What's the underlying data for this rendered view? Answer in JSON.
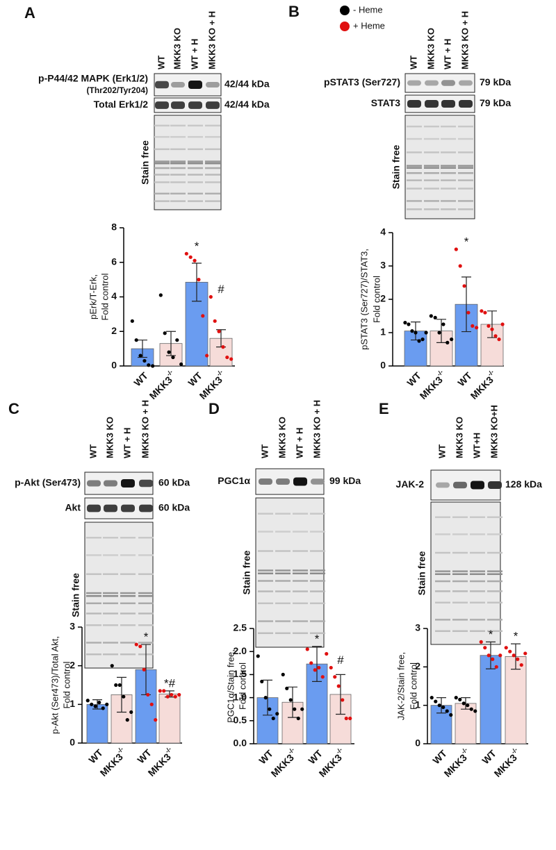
{
  "legend": [
    {
      "label": "- Heme",
      "color": "#000000"
    },
    {
      "label": "+ Heme",
      "color": "#e01010"
    }
  ],
  "blots": [
    {
      "panel": "A",
      "lanes": [
        "WT",
        "MKK3 KO",
        "WT + H",
        "MKK3 KO + H"
      ],
      "rows": [
        {
          "label": "p-P44/42 MAPK (Erk1/2)",
          "sublabel": "(Thr202/Tyr204)",
          "kda": "42/44 kDa"
        },
        {
          "label": "Total Erk1/2",
          "kda": "42/44 kDa"
        }
      ],
      "stain": "Stain free"
    },
    {
      "panel": "B",
      "lanes": [
        "WT",
        "MKK3 KO",
        "WT + H",
        "MKK3 KO + H"
      ],
      "rows": [
        {
          "label": "pSTAT3 (Ser727)",
          "kda": "79 kDa"
        },
        {
          "label": "STAT3",
          "kda": "79 kDa"
        }
      ],
      "stain": "Stain free"
    },
    {
      "panel": "C",
      "lanes": [
        "WT",
        "MKK3 KO",
        "WT + H",
        "MKK3 KO + H"
      ],
      "rows": [
        {
          "label": "p-Akt (Ser473)",
          "kda": "60 kDa"
        },
        {
          "label": "Akt",
          "kda": "60 kDa"
        }
      ],
      "stain": "Stain free"
    },
    {
      "panel": "D",
      "lanes": [
        "WT",
        "MKK3 KO",
        "WT + H",
        "MKK3 KO + H"
      ],
      "rows": [
        {
          "label": "PGC1α",
          "kda": "99 kDa"
        }
      ],
      "stain": "Stain free"
    },
    {
      "panel": "E",
      "lanes": [
        "WT",
        "MKK3 KO",
        "WT+H",
        "MKK3 KO+H"
      ],
      "rows": [
        {
          "label": "JAK-2",
          "kda": "128 kDa"
        }
      ],
      "stain": "Stain free"
    }
  ],
  "chart_data": [
    {
      "type": "bar",
      "ylabel": [
        "pErk/T-Erk,",
        "Fold control"
      ],
      "categories": [
        "WT",
        "MKK3",
        "WT",
        "MKK3"
      ],
      "superscripts": [
        null,
        "-/-",
        null,
        "-/-"
      ],
      "values": [
        1.0,
        1.3,
        4.85,
        1.6
      ],
      "errors": [
        0.5,
        0.7,
        1.1,
        0.5
      ],
      "colors": [
        "#6a9cf0",
        "#f6dcd9",
        "#6a9cf0",
        "#f6dcd9"
      ],
      "point_colors": [
        "#000000",
        "#000000",
        "#e01010",
        "#e01010"
      ],
      "points": [
        [
          2.6,
          1.5,
          0.6,
          0.3,
          0.05,
          0.0
        ],
        [
          4.1,
          1.9,
          0.8,
          0.5,
          1.5,
          0.1
        ],
        [
          6.5,
          6.3,
          6.1,
          5.0,
          2.9,
          0.6
        ],
        [
          4.0,
          2.6,
          2.0,
          1.1,
          0.5,
          0.4
        ]
      ],
      "annotations": [
        null,
        null,
        "*",
        "#"
      ],
      "ylim": [
        0,
        8
      ],
      "yticks": [
        0,
        2,
        4,
        6,
        8
      ]
    },
    {
      "type": "bar",
      "ylabel": [
        "pSTAT3 (Ser727)/STAT3,",
        "Fold control"
      ],
      "categories": [
        "WT",
        "MKK3",
        "WT",
        "MKK3"
      ],
      "superscripts": [
        null,
        "-/-",
        null,
        "-/-"
      ],
      "values": [
        1.05,
        1.05,
        1.85,
        1.25
      ],
      "errors": [
        0.27,
        0.35,
        0.82,
        0.4
      ],
      "colors": [
        "#6a9cf0",
        "#f6dcd9",
        "#6a9cf0",
        "#f6dcd9"
      ],
      "point_colors": [
        "#000000",
        "#000000",
        "#e01010",
        "#e01010"
      ],
      "points": [
        [
          1.3,
          1.25,
          1.05,
          1.0,
          0.75,
          0.8,
          1.0
        ],
        [
          1.5,
          1.45,
          1.0,
          1.25,
          0.7,
          0.8
        ],
        [
          3.5,
          3.0,
          2.4,
          1.6,
          1.2,
          1.15
        ],
        [
          1.65,
          1.6,
          1.2,
          1.1,
          0.9,
          0.8,
          1.25
        ]
      ],
      "annotations": [
        null,
        null,
        "*",
        null
      ],
      "ylim": [
        0,
        4
      ],
      "yticks": [
        0,
        1,
        2,
        3,
        4
      ]
    },
    {
      "type": "bar",
      "ylabel": [
        "p-Akt (Ser473)/Total Akt,",
        "Fold control"
      ],
      "categories": [
        "WT",
        "MKK3",
        "WT",
        "MKK3"
      ],
      "superscripts": [
        null,
        "-/-",
        null,
        "-/-"
      ],
      "values": [
        1.0,
        1.25,
        1.9,
        1.27
      ],
      "errors": [
        0.12,
        0.45,
        0.65,
        0.08
      ],
      "colors": [
        "#6a9cf0",
        "#f6dcd9",
        "#6a9cf0",
        "#f6dcd9"
      ],
      "point_colors": [
        "#000000",
        "#000000",
        "#e01010",
        "#e01010"
      ],
      "points": [
        [
          1.1,
          1.0,
          0.95,
          1.05,
          0.9,
          1.0
        ],
        [
          2.0,
          1.5,
          1.5,
          1.2,
          0.6,
          0.8
        ],
        [
          2.55,
          2.5,
          1.9,
          1.25,
          1.0,
          0.6
        ],
        [
          1.35,
          1.35,
          1.2,
          1.25,
          1.2,
          1.25
        ]
      ],
      "annotations": [
        null,
        null,
        "*",
        "*#"
      ],
      "ylim": [
        0,
        3
      ],
      "yticks": [
        0,
        1,
        2,
        3
      ]
    },
    {
      "type": "bar",
      "ylabel": [
        "PGC1α/Stain free,",
        "Fold control"
      ],
      "categories": [
        "WT",
        "MKK3",
        "WT",
        "MKK3"
      ],
      "superscripts": [
        null,
        "-/-",
        null,
        "-/-"
      ],
      "values": [
        1.0,
        0.9,
        1.73,
        1.07
      ],
      "errors": [
        0.38,
        0.33,
        0.38,
        0.43
      ],
      "colors": [
        "#6a9cf0",
        "#f6dcd9",
        "#6a9cf0",
        "#f6dcd9"
      ],
      "point_colors": [
        "#000000",
        "#000000",
        "#e01010",
        "#e01010"
      ],
      "points": [
        [
          1.9,
          1.35,
          1.0,
          0.75,
          0.55,
          0.65
        ],
        [
          1.5,
          1.2,
          0.95,
          0.75,
          0.55,
          0.75
        ],
        [
          2.05,
          1.75,
          1.6,
          1.65,
          1.45,
          1.95
        ],
        [
          1.65,
          1.45,
          1.25,
          0.95,
          0.55,
          0.55
        ]
      ],
      "annotations": [
        null,
        null,
        "*",
        "#"
      ],
      "ylim": [
        0,
        2.5
      ],
      "yticks": [
        {
          "value": 0,
          "label": "0.0"
        },
        0.5,
        {
          "value": 1,
          "label": "1.0"
        },
        1.5,
        {
          "value": 2,
          "label": "2.0"
        },
        2.5
      ]
    },
    {
      "type": "bar",
      "ylabel": [
        "JAK-2/Stain free,",
        "Fold control"
      ],
      "categories": [
        "WT",
        "MKK3",
        "WT",
        "MKK3"
      ],
      "superscripts": [
        null,
        "-/-",
        null,
        "-/-"
      ],
      "values": [
        1.0,
        1.05,
        2.3,
        2.27
      ],
      "errors": [
        0.2,
        0.15,
        0.35,
        0.33
      ],
      "colors": [
        "#6a9cf0",
        "#f6dcd9",
        "#6a9cf0",
        "#f6dcd9"
      ],
      "point_colors": [
        "#000000",
        "#000000",
        "#e01010",
        "#e01010"
      ],
      "points": [
        [
          1.2,
          1.1,
          1.0,
          0.95,
          0.85,
          0.75
        ],
        [
          1.2,
          1.15,
          1.05,
          1.0,
          0.9,
          0.85
        ],
        [
          2.65,
          2.5,
          2.3,
          2.2,
          2.0,
          2.3
        ],
        [
          2.5,
          2.4,
          2.3,
          2.2,
          2.05,
          2.35
        ]
      ],
      "annotations": [
        null,
        null,
        "*",
        "*"
      ],
      "ylim": [
        0,
        3
      ],
      "yticks": [
        0,
        1,
        2,
        3
      ]
    }
  ]
}
